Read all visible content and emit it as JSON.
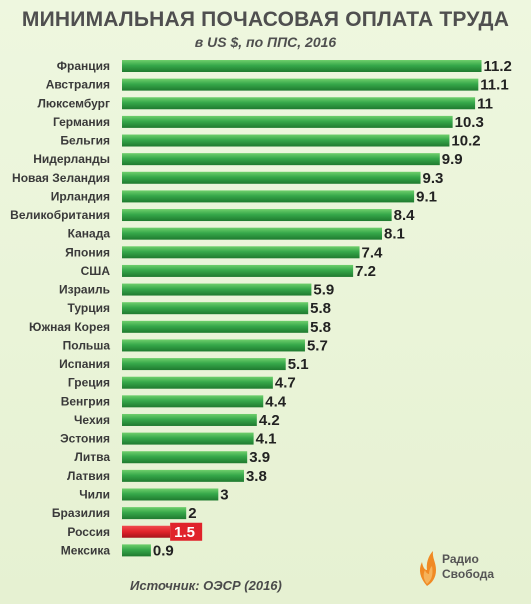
{
  "header": {
    "title": "МИНИМАЛЬНАЯ ПОЧАСОВАЯ ОПЛАТА ТРУДА",
    "subtitle": "в US $, по ППС, 2016"
  },
  "footer": {
    "source": "Источник: ОЭСР (2016)",
    "logo_line1": "Радио",
    "logo_line2": "Свобода"
  },
  "colors": {
    "bar": "#36a84a",
    "bar_dark": "#1f7a2f",
    "highlight": "#e0232b"
  },
  "chart_data": {
    "type": "bar",
    "orientation": "horizontal",
    "title": "МИНИМАЛЬНАЯ ПОЧАСОВАЯ ОПЛАТА ТРУДА",
    "subtitle": "в US $, по ППС, 2016",
    "categories": [
      "Франция",
      "Австралия",
      "Люксембург",
      "Германия",
      "Бельгия",
      "Нидерланды",
      "Новая Зеландия",
      "Ирландия",
      "Великобритания",
      "Канада",
      "Япония",
      "США",
      "Израиль",
      "Турция",
      "Южная Корея",
      "Польша",
      "Испания",
      "Греция",
      "Венгрия",
      "Чехия",
      "Эстония",
      "Литва",
      "Латвия",
      "Чили",
      "Бразилия",
      "Россия",
      "Мексика"
    ],
    "values": [
      11.2,
      11.1,
      11,
      10.3,
      10.2,
      9.9,
      9.3,
      9.1,
      8.4,
      8.1,
      7.4,
      7.2,
      5.9,
      5.8,
      5.8,
      5.7,
      5.1,
      4.7,
      4.4,
      4.2,
      4.1,
      3.9,
      3.8,
      3,
      2,
      1.5,
      0.9
    ],
    "value_labels": [
      "11.2",
      "11.1",
      "11",
      "10.3",
      "10.2",
      "9.9",
      "9.3",
      "9.1",
      "8.4",
      "8.1",
      "7.4",
      "7.2",
      "5.9",
      "5.8",
      "5.8",
      "5.7",
      "5.1",
      "4.7",
      "4.4",
      "4.2",
      "4.1",
      "3.9",
      "3.8",
      "3",
      "2",
      "1.5",
      "0.9"
    ],
    "highlight_category": "Россия",
    "grid": false,
    "legend": "none"
  }
}
